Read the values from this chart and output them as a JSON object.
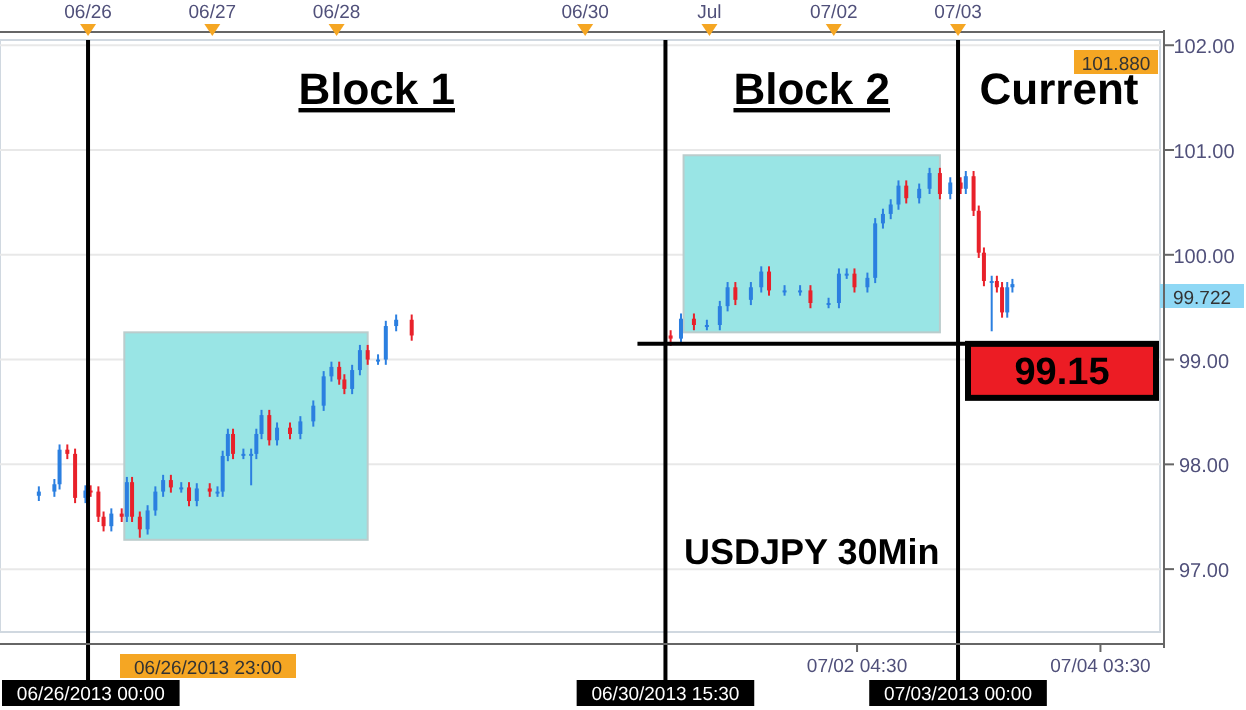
{
  "chart_data": {
    "type": "candlestick",
    "colors": [
      "#2b7fe0",
      "#2b7fe0",
      "#2b7fe0",
      "#e8212a",
      "#e8212a",
      "#2b7fe0",
      "#e8212a",
      "#e8212a",
      "#e8212a",
      "#2b7fe0",
      "#e8212a",
      "#2b7fe0",
      "#e8212a",
      "#e8212a",
      "#2b7fe0",
      "#2b7fe0",
      "#2b7fe0",
      "#e8212a",
      "#2b7fe0",
      "#e8212a",
      "#2b7fe0",
      "#e8212a",
      "#2b7fe0",
      "#2b7fe0",
      "#2b7fe0",
      "#e8212a",
      "#2b7fe0",
      "#2b7fe0",
      "#2b7fe0",
      "#2b7fe0",
      "#e8212a",
      "#2b7fe0",
      "#e8212a",
      "#2b7fe0",
      "#2b7fe0",
      "#2b7fe0",
      "#2b7fe0",
      "#e8212a",
      "#e8212a",
      "#2b7fe0",
      "#2b7fe0",
      "#e8212a",
      "#2b7fe0",
      "#2b7fe0",
      "#2b7fe0",
      "#e8212a",
      "#e8212a",
      "#2b7fe0",
      "#e8212a",
      "#2b7fe0",
      "#2b7fe0",
      "#2b7fe0",
      "#e8212a",
      "#2b7fe0",
      "#2b7fe0",
      "#e8212a",
      "#2b7fe0",
      "#2b7fe0",
      "#e8212a",
      "#2b7fe0",
      "#2b7fe0",
      "#2b7fe0",
      "#e8212a",
      "#2b7fe0",
      "#2b7fe0",
      "#2b7fe0",
      "#2b7fe0",
      "#2b7fe0",
      "#e8212a",
      "#2b7fe0",
      "#2b7fe0",
      "#e8212a",
      "#2b7fe0",
      "#e8212a",
      "#2b7fe0",
      "#e8212a",
      "#e8212a",
      "#e8212a",
      "#2b7fe0",
      "#e8212a",
      "#e8212a",
      "#2b7fe0",
      "#2b7fe0"
    ],
    "x": [
      "2013-06-25T14:30",
      "2013-06-25T17:30",
      "2013-06-25T18:30",
      "2013-06-25T20:00",
      "2013-06-25T21:30",
      "2013-06-25T23:30",
      "2013-06-26T00:30",
      "2013-06-26T02:00",
      "2013-06-26T03:00",
      "2013-06-26T04:30",
      "2013-06-26T06:30",
      "2013-06-26T07:30",
      "2013-06-26T08:30",
      "2013-06-26T10:00",
      "2013-06-26T11:30",
      "2013-06-26T13:00",
      "2013-06-26T14:30",
      "2013-06-26T16:00",
      "2013-06-26T18:00",
      "2013-06-26T19:30",
      "2013-06-26T21:00",
      "2013-06-26T23:30",
      "2013-06-27T01:00",
      "2013-06-27T02:00",
      "2013-06-27T03:00",
      "2013-06-27T04:00",
      "2013-06-27T06:00",
      "2013-06-27T07:30",
      "2013-06-27T08:30",
      "2013-06-27T09:30",
      "2013-06-27T11:00",
      "2013-06-27T12:30",
      "2013-06-27T15:00",
      "2013-06-27T17:00",
      "2013-06-27T19:30",
      "2013-06-27T21:30",
      "2013-06-27T23:00",
      "2013-06-28T00:30",
      "2013-06-28T01:30",
      "2013-06-28T03:00",
      "2013-06-28T04:30",
      "2013-06-28T06:00",
      "2013-06-28T08:00",
      "2013-06-28T09:30",
      "2013-06-28T11:30",
      "2013-06-28T14:30",
      "2013-06-30T16:30",
      "2013-06-30T18:30",
      "2013-06-30T21:00",
      "2013-06-30T23:30",
      "2013-07-01T02:00",
      "2013-07-01T03:30",
      "2013-07-01T05:00",
      "2013-07-01T08:00",
      "2013-07-01T10:00",
      "2013-07-01T11:30",
      "2013-07-01T14:30",
      "2013-07-01T17:30",
      "2013-07-01T19:30",
      "2013-07-01T23:00",
      "2013-07-02T01:00",
      "2013-07-02T02:30",
      "2013-07-02T04:00",
      "2013-07-02T06:30",
      "2013-07-02T08:00",
      "2013-07-02T09:30",
      "2013-07-02T11:00",
      "2013-07-02T12:30",
      "2013-07-02T14:00",
      "2013-07-02T16:30",
      "2013-07-02T18:30",
      "2013-07-02T20:30",
      "2013-07-02T22:30",
      "2013-07-03T00:30",
      "2013-07-03T01:30",
      "2013-07-03T03:00",
      "2013-07-03T04:00",
      "2013-07-03T05:00",
      "2013-07-03T06:30",
      "2013-07-03T07:30",
      "2013-07-03T08:30",
      "2013-07-03T09:30",
      "2013-07-03T10:30"
    ],
    "ohlc": [
      [
        97.7,
        97.79,
        97.65,
        97.74
      ],
      [
        97.74,
        97.86,
        97.69,
        97.81
      ],
      [
        97.81,
        98.19,
        97.76,
        98.14
      ],
      [
        98.14,
        98.19,
        98.05,
        98.1
      ],
      [
        98.1,
        98.15,
        97.63,
        97.68
      ],
      [
        97.68,
        97.8,
        97.63,
        97.75
      ],
      [
        97.75,
        97.8,
        97.69,
        97.74
      ],
      [
        97.74,
        97.79,
        97.45,
        97.5
      ],
      [
        97.5,
        97.55,
        97.36,
        97.41
      ],
      [
        97.41,
        97.58,
        97.36,
        97.53
      ],
      [
        97.53,
        97.58,
        97.45,
        97.5
      ],
      [
        97.5,
        97.88,
        97.45,
        97.83
      ],
      [
        97.83,
        97.88,
        97.45,
        97.5
      ],
      [
        97.5,
        97.55,
        97.3,
        97.38
      ],
      [
        97.38,
        97.61,
        97.33,
        97.56
      ],
      [
        97.56,
        97.79,
        97.51,
        97.74
      ],
      [
        97.74,
        97.9,
        97.69,
        97.85
      ],
      [
        97.85,
        97.9,
        97.73,
        97.78
      ],
      [
        97.78,
        97.83,
        97.73,
        97.78
      ],
      [
        97.78,
        97.83,
        97.6,
        97.65
      ],
      [
        97.65,
        97.82,
        97.6,
        97.77
      ],
      [
        97.77,
        97.82,
        97.69,
        97.74
      ],
      [
        97.74,
        97.79,
        97.69,
        97.74
      ],
      [
        97.74,
        98.13,
        97.69,
        98.08
      ],
      [
        98.08,
        98.34,
        98.03,
        98.29
      ],
      [
        98.29,
        98.34,
        98.05,
        98.1
      ],
      [
        98.1,
        98.15,
        98.05,
        98.1
      ],
      [
        98.1,
        98.15,
        97.8,
        98.1
      ],
      [
        98.1,
        98.34,
        98.05,
        98.29
      ],
      [
        98.29,
        98.52,
        98.24,
        98.47
      ],
      [
        98.47,
        98.52,
        98.18,
        98.23
      ],
      [
        98.23,
        98.4,
        98.18,
        98.35
      ],
      [
        98.35,
        98.4,
        98.24,
        98.29
      ],
      [
        98.29,
        98.46,
        98.24,
        98.41
      ],
      [
        98.41,
        98.61,
        98.36,
        98.56
      ],
      [
        98.56,
        98.89,
        98.51,
        98.84
      ],
      [
        98.84,
        98.98,
        98.79,
        98.93
      ],
      [
        98.93,
        98.98,
        98.76,
        98.81
      ],
      [
        98.81,
        98.86,
        98.67,
        98.72
      ],
      [
        98.72,
        98.95,
        98.67,
        98.9
      ],
      [
        98.9,
        99.14,
        98.85,
        99.09
      ],
      [
        99.09,
        99.14,
        98.95,
        99.0
      ],
      [
        99.0,
        99.05,
        98.95,
        99.0
      ],
      [
        99.0,
        99.37,
        98.95,
        99.32
      ],
      [
        99.32,
        99.43,
        99.27,
        99.38
      ],
      [
        99.38,
        99.43,
        99.18,
        99.23
      ],
      [
        99.23,
        99.28,
        99.13,
        99.2
      ],
      [
        99.2,
        99.44,
        99.15,
        99.39
      ],
      [
        99.39,
        99.44,
        99.28,
        99.33
      ],
      [
        99.33,
        99.38,
        99.28,
        99.33
      ],
      [
        99.33,
        99.56,
        99.28,
        99.51
      ],
      [
        99.51,
        99.74,
        99.46,
        99.69
      ],
      [
        99.69,
        99.74,
        99.52,
        99.57
      ],
      [
        99.57,
        99.74,
        99.52,
        99.69
      ],
      [
        99.69,
        99.89,
        99.64,
        99.84
      ],
      [
        99.84,
        99.89,
        99.61,
        99.66
      ],
      [
        99.66,
        99.71,
        99.61,
        99.66
      ],
      [
        99.66,
        99.71,
        99.61,
        99.66
      ],
      [
        99.66,
        99.71,
        99.49,
        99.54
      ],
      [
        99.54,
        99.59,
        99.49,
        99.54
      ],
      [
        99.54,
        99.87,
        99.49,
        99.82
      ],
      [
        99.82,
        99.87,
        99.77,
        99.82
      ],
      [
        99.82,
        99.87,
        99.64,
        99.69
      ],
      [
        99.69,
        99.83,
        99.64,
        99.78
      ],
      [
        99.78,
        100.35,
        99.73,
        100.3
      ],
      [
        100.3,
        100.44,
        100.25,
        100.39
      ],
      [
        100.39,
        100.53,
        100.34,
        100.48
      ],
      [
        100.48,
        100.71,
        100.43,
        100.66
      ],
      [
        100.66,
        100.71,
        100.49,
        100.54
      ],
      [
        100.54,
        100.68,
        100.49,
        100.63
      ],
      [
        100.63,
        100.83,
        100.58,
        100.78
      ],
      [
        100.78,
        100.83,
        100.53,
        100.58
      ],
      [
        100.58,
        100.74,
        100.53,
        100.69
      ],
      [
        100.69,
        100.74,
        100.58,
        100.63
      ],
      [
        100.63,
        100.8,
        100.58,
        100.75
      ],
      [
        100.75,
        100.8,
        100.37,
        100.42
      ],
      [
        100.42,
        100.47,
        99.97,
        100.02
      ],
      [
        100.02,
        100.07,
        99.7,
        99.75
      ],
      [
        99.75,
        99.8,
        99.27,
        99.75
      ],
      [
        99.75,
        99.8,
        99.64,
        99.69
      ],
      [
        99.69,
        99.74,
        99.4,
        99.45
      ],
      [
        99.45,
        99.74,
        99.4,
        99.69
      ],
      [
        99.69,
        99.77,
        99.64,
        99.72
      ]
    ],
    "xlim": [
      "2013-06-25T07:00",
      "2013-07-04T15:00"
    ],
    "ylim": [
      96.4,
      102.05
    ],
    "xticks": [
      {
        "value": "2013-07-02T04:30",
        "label": "07/02 04:30"
      },
      {
        "value": "2013-07-04T03:30",
        "label": "07/04 03:30"
      }
    ],
    "x2lim": [
      "2013-06-25T07:00",
      "2013-07-04T15:00"
    ],
    "x2ticks": [
      {
        "value": "2013-06-26",
        "label": "06/26"
      },
      {
        "value": "2013-06-27",
        "label": "06/27"
      },
      {
        "value": "2013-06-28",
        "label": "06/28"
      },
      {
        "value": "2013-06-30",
        "label": "06/30"
      },
      {
        "value": "2013-07-01",
        "label": "Jul"
      },
      {
        "value": "2013-07-02",
        "label": "07/02"
      },
      {
        "value": "2013-07-03",
        "label": "07/03"
      }
    ],
    "yticks": [
      {
        "value": 97,
        "label": "97.00"
      },
      {
        "value": 98,
        "label": "98.00"
      },
      {
        "value": 99,
        "label": "99.00"
      },
      {
        "value": 100,
        "label": "100.00"
      },
      {
        "value": 101,
        "label": "101.00"
      },
      {
        "value": 102,
        "label": "102.00"
      }
    ],
    "grid": "y",
    "ref_lines": [
      {
        "axis": "x",
        "value": "2013-06-26T00:00",
        "label": "06/26/2013 00:00",
        "color": "#000000"
      },
      {
        "axis": "x",
        "value": "2013-06-30T15:30",
        "label": "06/30/2013 15:30",
        "color": "#000000"
      },
      {
        "axis": "x",
        "value": "2013-07-03T00:00",
        "label": "07/03/2013 00:00",
        "color": "#000000"
      },
      {
        "axis": "y",
        "value": 99.15,
        "label": "99.15",
        "color": "#000000"
      }
    ],
    "bands": [
      {
        "axis": "x",
        "from": "2013-06-26T07:00",
        "to": "2013-06-28T06:00",
        "color": "#99e5e5"
      },
      {
        "axis": "x",
        "from": "2013-06-30T19:00",
        "to": "2013-07-02T20:30",
        "color": "#99e5e5"
      }
    ],
    "annotations": [
      "Block 1",
      "Block 2",
      "Current",
      "USDJPY 30Min",
      "101.880",
      "99.722",
      "06/26/2013 23:00"
    ]
  }
}
